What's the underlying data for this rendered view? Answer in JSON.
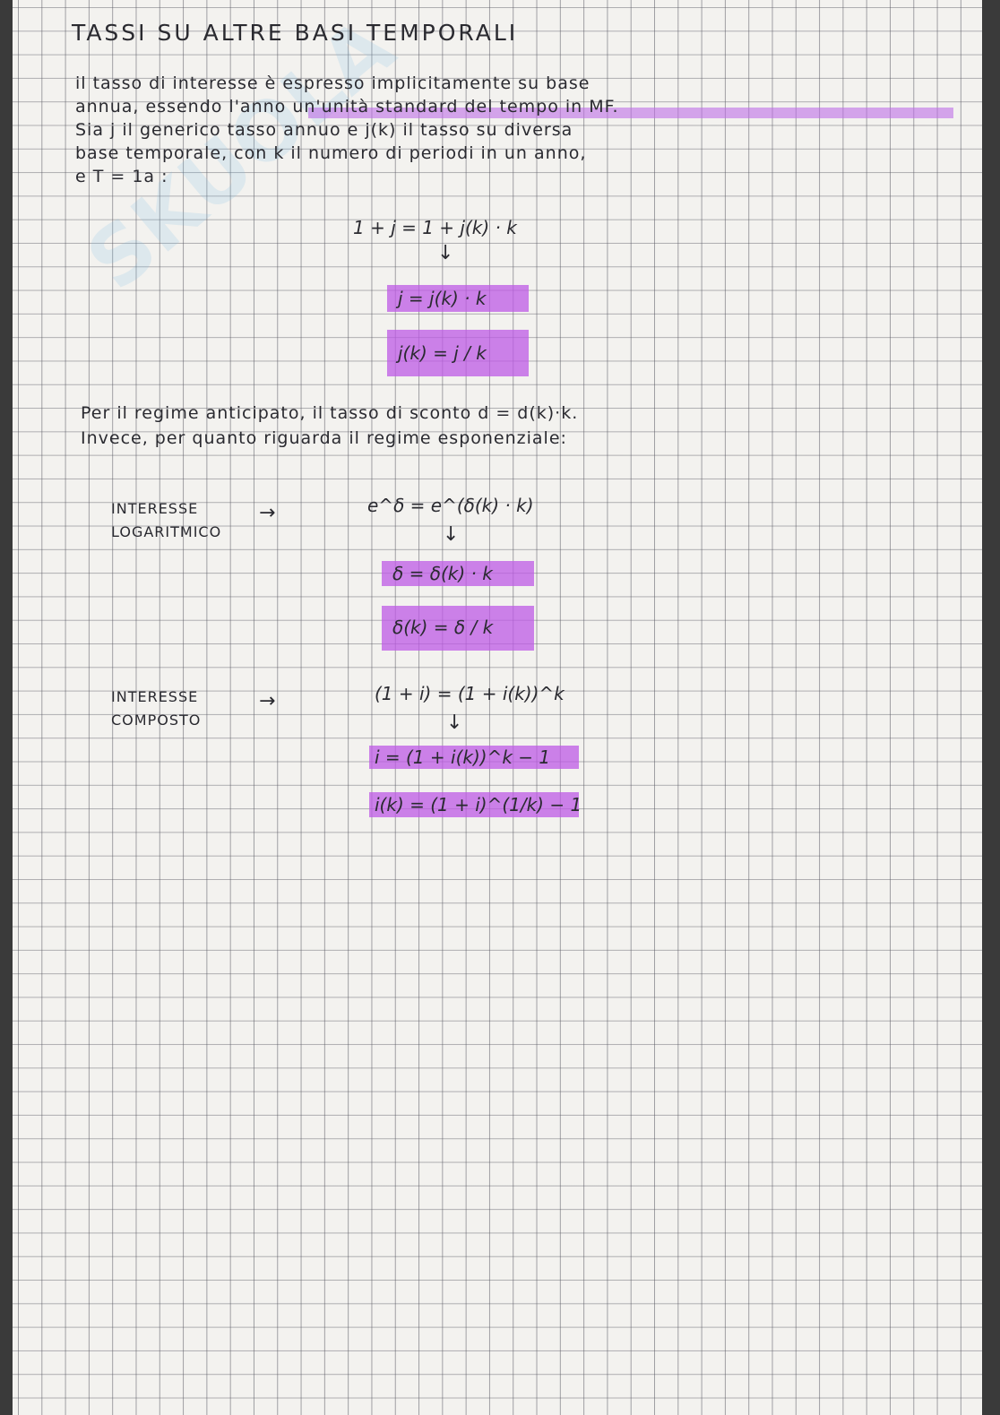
{
  "title": "TASSI SU ALTRE BASI TEMPORALI",
  "watermark": "SKUOLA.net",
  "intro": [
    "il tasso di interesse è espresso implicitamente su base",
    "annua, essendo l'anno un'unità standard del tempo in MF.",
    "Sia j il generico tasso annuo e j(k) il tasso su diversa",
    "base temporale, con k il numero di periodi in un anno,",
    "e T = 1a :"
  ],
  "formula1": {
    "eq": "1 + j = 1 + j(k) · k",
    "box1": "j = j(k) · k",
    "box2": "j(k) = j / k"
  },
  "mid": [
    "Per il regime anticipato, il tasso di sconto d = d(k)·k.",
    "Invece, per quanto riguarda il regime esponenziale:"
  ],
  "log": {
    "label1": "INTERESSE",
    "label2": "LOGARITMICO",
    "eq": "e^δ = e^(δ(k) · k)",
    "box1": "δ = δ(k) · k",
    "box2": "δ(k) = δ / k"
  },
  "comp": {
    "label1": "INTERESSE",
    "label2": "COMPOSTO",
    "eq": "(1 + i) = (1 + i(k))^k",
    "box1": "i = (1 + i(k))^k − 1",
    "box2": "i(k) = (1 + i)^(1/k) − 1"
  },
  "colors": {
    "highlight": "#c070e8",
    "ink": "#2a2a30",
    "paper": "#f3f2ef"
  }
}
